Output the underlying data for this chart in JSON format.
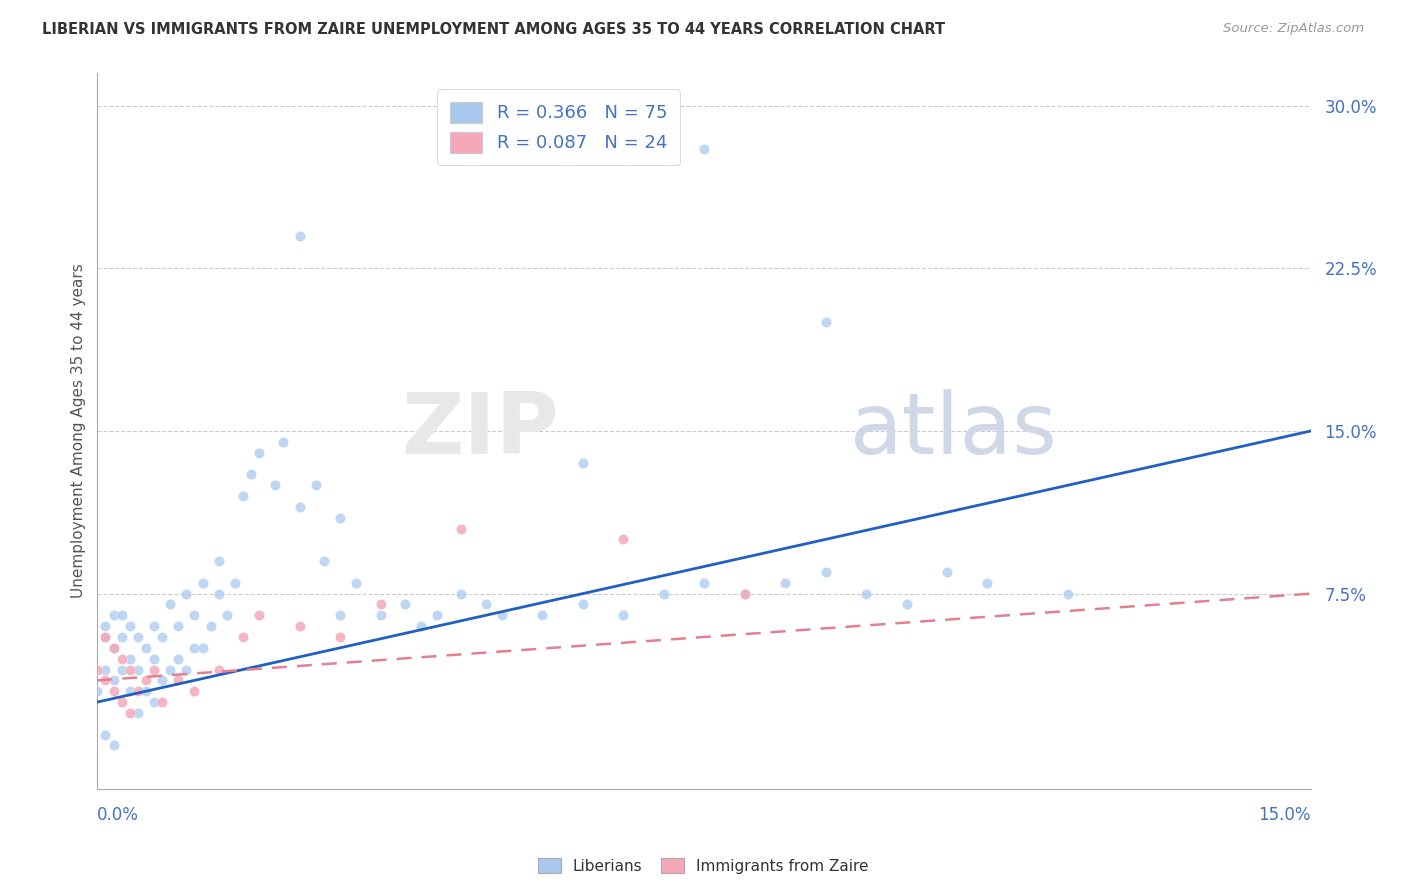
{
  "title": "LIBERIAN VS IMMIGRANTS FROM ZAIRE UNEMPLOYMENT AMONG AGES 35 TO 44 YEARS CORRELATION CHART",
  "source": "Source: ZipAtlas.com",
  "ylabel": "Unemployment Among Ages 35 to 44 years",
  "xmin": 0.0,
  "xmax": 0.15,
  "ymin": -0.015,
  "ymax": 0.315,
  "liberian_R": 0.366,
  "liberian_N": 75,
  "zaire_R": 0.087,
  "zaire_N": 24,
  "blue_color": "#a8c8f0",
  "pink_color": "#f4a8b8",
  "blue_line_color": "#2060c0",
  "pink_line_color": "#e08090",
  "ytick_vals": [
    0.075,
    0.15,
    0.225,
    0.3
  ],
  "ytick_labels": [
    "7.5%",
    "15.0%",
    "22.5%",
    "30.0%"
  ],
  "blue_line_x0": 0.0,
  "blue_line_y0": 0.025,
  "blue_line_x1": 0.15,
  "blue_line_y1": 0.15,
  "pink_line_x0": 0.0,
  "pink_line_y0": 0.035,
  "pink_line_x1": 0.15,
  "pink_line_y1": 0.075,
  "lib_x": [
    0.0,
    0.001,
    0.001,
    0.001,
    0.001,
    0.002,
    0.002,
    0.002,
    0.002,
    0.003,
    0.003,
    0.003,
    0.004,
    0.004,
    0.004,
    0.005,
    0.005,
    0.005,
    0.006,
    0.006,
    0.007,
    0.007,
    0.007,
    0.008,
    0.008,
    0.009,
    0.009,
    0.01,
    0.01,
    0.011,
    0.011,
    0.012,
    0.012,
    0.013,
    0.013,
    0.014,
    0.015,
    0.015,
    0.016,
    0.017,
    0.018,
    0.019,
    0.02,
    0.022,
    0.023,
    0.025,
    0.027,
    0.028,
    0.03,
    0.032,
    0.035,
    0.038,
    0.04,
    0.042,
    0.045,
    0.048,
    0.05,
    0.055,
    0.06,
    0.065,
    0.07,
    0.075,
    0.08,
    0.085,
    0.09,
    0.095,
    0.1,
    0.105,
    0.11,
    0.12,
    0.06,
    0.075,
    0.09,
    0.025,
    0.03
  ],
  "lib_y": [
    0.03,
    0.04,
    0.055,
    0.06,
    0.01,
    0.035,
    0.05,
    0.065,
    0.005,
    0.04,
    0.055,
    0.065,
    0.03,
    0.045,
    0.06,
    0.02,
    0.04,
    0.055,
    0.03,
    0.05,
    0.025,
    0.045,
    0.06,
    0.035,
    0.055,
    0.04,
    0.07,
    0.045,
    0.06,
    0.04,
    0.075,
    0.05,
    0.065,
    0.05,
    0.08,
    0.06,
    0.075,
    0.09,
    0.065,
    0.08,
    0.12,
    0.13,
    0.14,
    0.125,
    0.145,
    0.115,
    0.125,
    0.09,
    0.065,
    0.08,
    0.065,
    0.07,
    0.06,
    0.065,
    0.075,
    0.07,
    0.065,
    0.065,
    0.07,
    0.065,
    0.075,
    0.08,
    0.075,
    0.08,
    0.085,
    0.075,
    0.07,
    0.085,
    0.08,
    0.075,
    0.135,
    0.28,
    0.2,
    0.24,
    0.11
  ],
  "zaire_x": [
    0.0,
    0.001,
    0.001,
    0.002,
    0.002,
    0.003,
    0.003,
    0.004,
    0.004,
    0.005,
    0.006,
    0.007,
    0.008,
    0.01,
    0.012,
    0.015,
    0.018,
    0.02,
    0.025,
    0.03,
    0.035,
    0.045,
    0.065,
    0.08
  ],
  "zaire_y": [
    0.04,
    0.035,
    0.055,
    0.03,
    0.05,
    0.025,
    0.045,
    0.02,
    0.04,
    0.03,
    0.035,
    0.04,
    0.025,
    0.035,
    0.03,
    0.04,
    0.055,
    0.065,
    0.06,
    0.055,
    0.07,
    0.105,
    0.1,
    0.075
  ]
}
